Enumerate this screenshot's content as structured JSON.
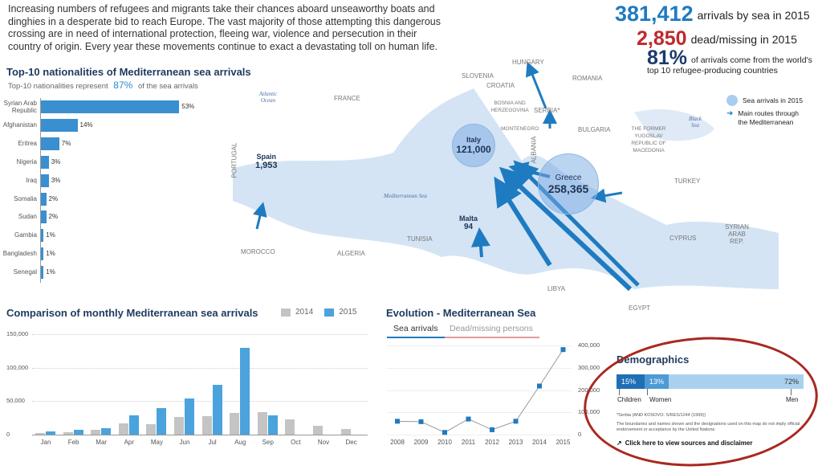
{
  "intro": "Increasing numbers of refugees and migrants take their chances aboard unseaworthy boats and dinghies in a desperate bid to reach Europe. The vast majority of those attempting this dangerous crossing are in need of international protection, fleeing war, violence and persecution in their country of origin. Every year these movements continue to exact a devastating toll on human life.",
  "stats": {
    "arrivals": {
      "value": "381,412",
      "label": "arrivals by sea in 2015",
      "color": "#1f7bc1"
    },
    "dead": {
      "value": "2,850",
      "label": "dead/missing in 2015",
      "color": "#c0282d"
    },
    "top10": {
      "value": "81%",
      "label1": "of arrivals come from the world's",
      "label2": "top 10 refugee-producing countries",
      "color": "#1b3a6b"
    }
  },
  "nationalities": {
    "title": "Top-10 nationalities of Mediterranean sea arrivals",
    "subtitle_pre": "Top-10 nationalities represent",
    "subtitle_value": "87%",
    "subtitle_post": "of the sea arrivals",
    "chart_data": {
      "type": "bar",
      "orientation": "horizontal",
      "categories": [
        "Syrian Arab Republic",
        "Afghanistan",
        "Eritrea",
        "Nigeria",
        "Iraq",
        "Somalia",
        "Sudan",
        "Gambia",
        "Bangladesh",
        "Senegal"
      ],
      "values": [
        53,
        14,
        7,
        3,
        3,
        2,
        2,
        1,
        1,
        1
      ],
      "labels": [
        "53%",
        "14%",
        "7%",
        "3%",
        "3%",
        "2%",
        "2%",
        "1%",
        "1%",
        "1%"
      ],
      "color": "#3a8fd0"
    }
  },
  "map": {
    "countries": [
      "France",
      "Portugal",
      "Spain",
      "Morocco",
      "Algeria",
      "Tunisia",
      "Libya",
      "Egypt",
      "Slovenia",
      "Croatia",
      "Hungary",
      "Romania",
      "Bosnia and Herzegovina",
      "Serbia*",
      "Montenegro",
      "Albania",
      "Bulgaria",
      "The former Yugoslav Republic of Macedonia",
      "Turkey",
      "Cyprus",
      "Syrian Arab Rep."
    ],
    "seas": [
      "Atlantic Ocean",
      "Mediterranean Sea",
      "Black Sea"
    ],
    "arrivals": [
      {
        "country": "Spain",
        "value": "1,953"
      },
      {
        "country": "Italy",
        "value": "121,000"
      },
      {
        "country": "Malta",
        "value": "94"
      },
      {
        "country": "Greece",
        "value": "258,365"
      }
    ],
    "legend": {
      "circle": "Sea arrivals in  2015",
      "route1": "Main routes through",
      "route2": "the Mediterranean"
    }
  },
  "monthly": {
    "title": "Comparison of monthly Mediterranean sea arrivals",
    "chart_data": {
      "type": "bar",
      "categories": [
        "Jan",
        "Feb",
        "Mar",
        "Apr",
        "May",
        "Jun",
        "Jul",
        "Aug",
        "Sep",
        "Oct",
        "Nov",
        "Dec"
      ],
      "series": [
        {
          "name": "2014",
          "color": "#c4c4c4",
          "values": [
            3000,
            4000,
            7000,
            17000,
            16000,
            26000,
            28000,
            33000,
            34000,
            23000,
            13000,
            9000
          ]
        },
        {
          "name": "2015",
          "color": "#4aa3dc",
          "values": [
            5000,
            7000,
            10000,
            29000,
            40000,
            54000,
            75000,
            130000,
            29000,
            null,
            null,
            null
          ]
        }
      ],
      "yticks": [
        "150,000",
        "100,000",
        "50,000",
        "0"
      ],
      "ylim": [
        0,
        150000
      ],
      "grid": true,
      "legend": "top"
    }
  },
  "evolution": {
    "title": "Evolution - Mediterranean Sea",
    "tabs": [
      "Sea arrivals",
      "Dead/missing persons"
    ],
    "chart_data": {
      "type": "line",
      "x": [
        "2008",
        "2009",
        "2010",
        "2011",
        "2012",
        "2013",
        "2014",
        "2015"
      ],
      "values": [
        60000,
        58000,
        10000,
        70000,
        22000,
        60000,
        218000,
        381412
      ],
      "yticks": [
        "400,000",
        "300,000",
        "200,000",
        "100,000",
        "0"
      ],
      "ylim": [
        0,
        400000
      ],
      "grid": true,
      "color": "#1f7bc1"
    }
  },
  "demographics": {
    "title": "Demographics",
    "segments": [
      {
        "label": "Children",
        "value": 15,
        "text": "15%",
        "color": "#1f6fb5"
      },
      {
        "label": "Women",
        "value": 13,
        "text": "13%",
        "color": "#4d9ad6"
      },
      {
        "label": "Men",
        "value": 72,
        "text": "72%",
        "color": "#a9d1ef"
      }
    ],
    "note1": "*Serbia (AND KOSOVO: S/RES/1244 (1999))",
    "note2": "The boundaries and names shown and the designations used on this map do not imply official endorsement or acceptance by the United Nations",
    "link": "Click here to view sources and disclaimer"
  }
}
